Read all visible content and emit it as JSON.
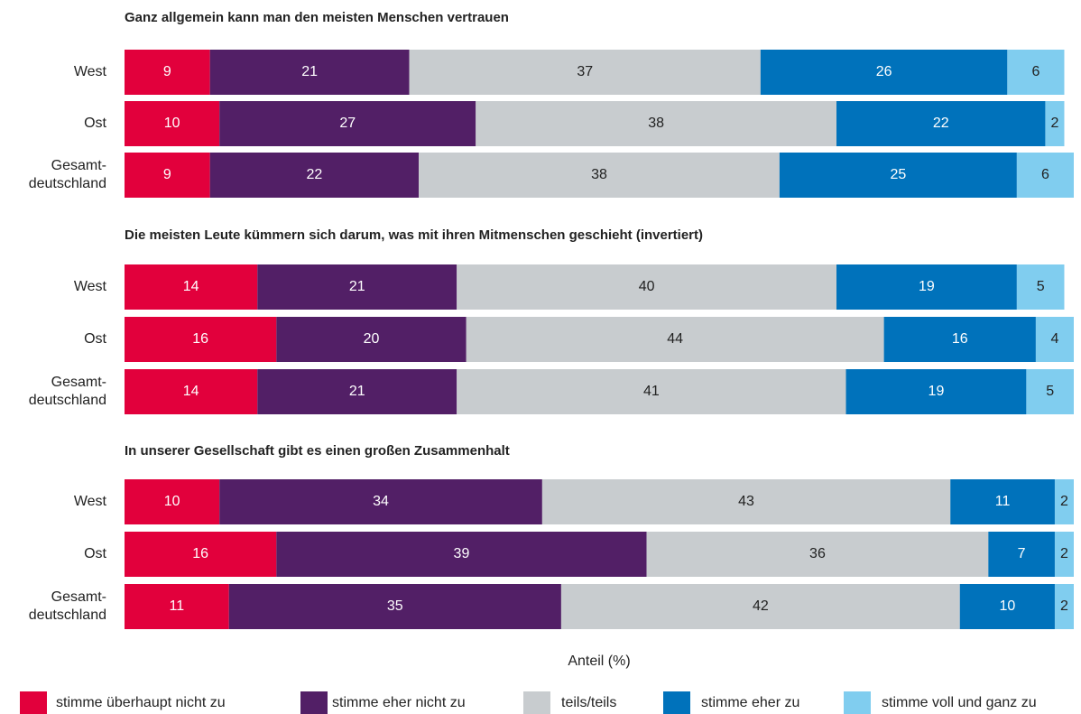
{
  "chart_data": [
    {
      "type": "stacked-bar",
      "title": "Ganz allgemein kann man den meisten Menschen vertrauen",
      "categories": [
        "West",
        "Ost",
        "Gesamt-\ndeutschland"
      ],
      "xlim": [
        0,
        100
      ],
      "series": [
        {
          "name": "stimme überhaupt nicht zu",
          "color": "#e2003c",
          "values": [
            9,
            10,
            9
          ]
        },
        {
          "name": "stimme eher nicht zu",
          "color": "#521f66",
          "values": [
            21,
            27,
            22
          ]
        },
        {
          "name": "teils/teils",
          "color": "#c8cccf",
          "values": [
            37,
            38,
            38
          ]
        },
        {
          "name": "stimme eher zu",
          "color": "#0072bb",
          "values": [
            26,
            22,
            25
          ]
        },
        {
          "name": "stimme voll und ganz zu",
          "color": "#80cdef",
          "values": [
            6,
            2,
            6
          ]
        }
      ]
    },
    {
      "type": "stacked-bar",
      "title": "Die meisten Leute kümmern sich darum, was mit ihren Mitmenschen geschieht (invertiert)",
      "categories": [
        "West",
        "Ost",
        "Gesamt-\ndeutschland"
      ],
      "xlim": [
        0,
        100
      ],
      "series": [
        {
          "name": "stimme überhaupt nicht zu",
          "color": "#e2003c",
          "values": [
            14,
            16,
            14
          ]
        },
        {
          "name": "stimme eher nicht zu",
          "color": "#521f66",
          "values": [
            21,
            20,
            21
          ]
        },
        {
          "name": "teils/teils",
          "color": "#c8cccf",
          "values": [
            40,
            44,
            41
          ]
        },
        {
          "name": "stimme eher zu",
          "color": "#0072bb",
          "values": [
            19,
            16,
            19
          ]
        },
        {
          "name": "stimme voll und ganz zu",
          "color": "#80cdef",
          "values": [
            5,
            4,
            5
          ]
        }
      ]
    },
    {
      "type": "stacked-bar",
      "title": "In unserer Gesellschaft gibt es einen großen Zusammenhalt",
      "categories": [
        "West",
        "Ost",
        "Gesamt-\ndeutschland"
      ],
      "xlim": [
        0,
        100
      ],
      "x_label": "Anteil (%)",
      "series": [
        {
          "name": "stimme überhaupt nicht zu",
          "color": "#e2003c",
          "values": [
            10,
            16,
            11
          ]
        },
        {
          "name": "stimme eher nicht zu",
          "color": "#521f66",
          "values": [
            34,
            39,
            35
          ]
        },
        {
          "name": "teils/teils",
          "color": "#c8cccf",
          "values": [
            43,
            36,
            42
          ]
        },
        {
          "name": "stimme eher zu",
          "color": "#0072bb",
          "values": [
            11,
            7,
            10
          ]
        },
        {
          "name": "stimme voll und ganz zu",
          "color": "#80cdef",
          "values": [
            2,
            2,
            2
          ]
        }
      ]
    }
  ]
}
